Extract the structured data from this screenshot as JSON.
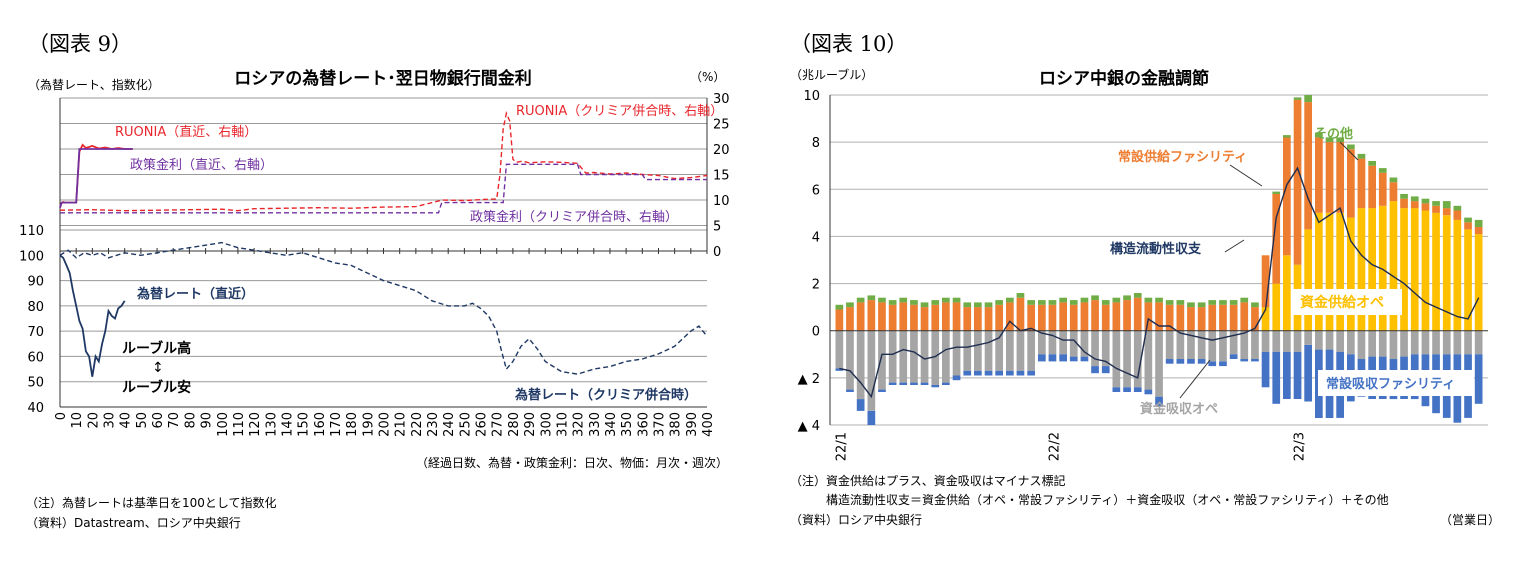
{
  "figures": [
    {
      "label": "（図表 9）",
      "title": "ロシアの為替レート･翌日物銀行間金利",
      "left_unit": "（為替レート、指数化）",
      "right_unit": "（%）",
      "xlabel": "（経過日数、為替・政策金利：日次、物価：月次・週次）",
      "annotations": {
        "ruonia_recent": "RUONIA（直近、右軸）",
        "policy_recent": "政策金利（直近、右軸）",
        "ruonia_crimea": "RUONIA（クリミア併合時、右軸）",
        "policy_crimea": "政策金利（クリミア併合時、右軸）",
        "fx_recent": "為替レート（直近）",
        "fx_crimea": "為替レート（クリミア併合時）",
        "ruble_high": "ルーブル高",
        "arrow": "↕",
        "ruble_low": "ルーブル安"
      },
      "notes": [
        "（注）為替レートは基準日を100として指数化",
        "（資料）Datastream、ロシア中央銀行"
      ]
    },
    {
      "label": "（図表 10）",
      "title": "ロシア中銀の金融調節",
      "unit": "（兆ルーブル）",
      "xlabel": "（営業日）",
      "annotations": {
        "standing_supply": "常設供給ファシリティ",
        "other": "その他",
        "structural": "構造流動性収支",
        "supply_ops": "資金供給オペ",
        "absorb_ops": "資金吸収オペ",
        "standing_absorb": "常設吸収ファシリティ"
      },
      "notes": [
        "（注）資金供給はプラス、資金吸収はマイナス標記",
        "　　　構造流動性収支＝資金供給（オペ・常設ファシリティ）＋資金吸収（オペ・常設ファシリティ）＋その他",
        "（資料）ロシア中央銀行"
      ]
    }
  ],
  "chart_data": [
    {
      "type": "line",
      "x_ticks": [
        0,
        10,
        20,
        30,
        40,
        50,
        60,
        70,
        80,
        90,
        100,
        110,
        120,
        130,
        140,
        150,
        160,
        170,
        180,
        190,
        200,
        210,
        220,
        230,
        240,
        250,
        260,
        270,
        280,
        290,
        300,
        310,
        320,
        330,
        340,
        350,
        360,
        370,
        380,
        390,
        400
      ],
      "xlim": [
        0,
        400
      ],
      "left_axis": {
        "ticks": [
          40,
          50,
          60,
          70,
          80,
          90,
          100,
          110
        ],
        "ylim": [
          40,
          110
        ]
      },
      "right_axis": {
        "ticks": [
          0,
          5,
          10,
          15,
          20,
          25,
          30
        ],
        "ylim": [
          0,
          30
        ]
      },
      "series": [
        {
          "name": "RUONIA（直近、右軸）",
          "axis": "right",
          "color": "#e8262c",
          "dash": "solid",
          "x": [
            0,
            1,
            2,
            3,
            10,
            12,
            14,
            16,
            20,
            24,
            28,
            32,
            36,
            40,
            45
          ],
          "y": [
            8.5,
            9.4,
            9.6,
            9.5,
            9.5,
            19.5,
            20.8,
            20.2,
            20.6,
            20.1,
            20.3,
            20.0,
            20.2,
            20.0,
            20.0
          ]
        },
        {
          "name": "政策金利（直近、右軸）",
          "axis": "right",
          "color": "#7030a0",
          "dash": "solid",
          "x": [
            0,
            1,
            2,
            3,
            10,
            12,
            45
          ],
          "y": [
            8.5,
            9.5,
            9.5,
            9.5,
            9.5,
            20.0,
            20.0
          ]
        },
        {
          "name": "RUONIA（クリミア併合時、右軸）",
          "axis": "right",
          "color": "#e8262c",
          "dash": "dashed",
          "x": [
            0,
            20,
            40,
            60,
            80,
            100,
            110,
            120,
            140,
            160,
            180,
            200,
            220,
            234,
            236,
            250,
            262,
            270,
            272,
            274,
            276,
            278,
            280,
            282,
            286,
            290,
            300,
            310,
            320,
            325,
            330,
            340,
            350,
            360,
            370,
            380,
            390,
            400
          ],
          "y": [
            8.0,
            8.1,
            7.9,
            8.0,
            8.1,
            8.2,
            7.9,
            8.3,
            8.4,
            8.5,
            8.4,
            8.6,
            8.7,
            9.8,
            10.0,
            9.9,
            10.1,
            10.2,
            15.0,
            24.0,
            27.0,
            25.5,
            18.0,
            17.4,
            17.6,
            17.3,
            17.5,
            17.4,
            17.2,
            15.3,
            15.4,
            15.1,
            15.3,
            15.0,
            14.8,
            14.2,
            14.4,
            14.8
          ]
        },
        {
          "name": "政策金利（クリミア併合時、右軸）",
          "axis": "right",
          "color": "#7030a0",
          "dash": "dashed",
          "x": [
            0,
            234,
            236,
            274,
            276,
            320,
            322,
            360,
            362,
            400
          ],
          "y": [
            7.5,
            7.5,
            9.5,
            9.5,
            17.0,
            17.0,
            15.0,
            15.0,
            14.0,
            14.0
          ]
        },
        {
          "name": "為替レート（直近）",
          "axis": "left",
          "color": "#1f3864",
          "dash": "solid",
          "x": [
            0,
            2,
            4,
            6,
            8,
            10,
            12,
            14,
            16,
            18,
            20,
            22,
            24,
            26,
            28,
            30,
            32,
            34,
            36,
            38,
            40
          ],
          "y": [
            100,
            99,
            96,
            93,
            86,
            80,
            74,
            71,
            62,
            60,
            52,
            60,
            58,
            65,
            70,
            78,
            76,
            75,
            79,
            80,
            82
          ]
        },
        {
          "name": "為替レート（クリミア併合時）",
          "axis": "left",
          "color": "#1f3864",
          "dash": "dashed",
          "x": [
            0,
            5,
            10,
            15,
            20,
            25,
            30,
            35,
            40,
            50,
            60,
            70,
            80,
            90,
            100,
            110,
            120,
            130,
            140,
            150,
            160,
            170,
            180,
            190,
            200,
            210,
            220,
            230,
            240,
            250,
            255,
            260,
            265,
            270,
            273,
            276,
            280,
            285,
            290,
            295,
            300,
            310,
            320,
            330,
            340,
            350,
            360,
            370,
            380,
            390,
            395,
            400
          ],
          "y": [
            100,
            102,
            99,
            101,
            100,
            101,
            99,
            100,
            101,
            100,
            101,
            102,
            103,
            104,
            105,
            103,
            102,
            101,
            100,
            101,
            99,
            97,
            96,
            93,
            90,
            88,
            86,
            82,
            80,
            80,
            81,
            79,
            76,
            70,
            62,
            55,
            58,
            64,
            67,
            63,
            58,
            54,
            53,
            55,
            56,
            58,
            59,
            61,
            64,
            70,
            72,
            68
          ]
        }
      ]
    },
    {
      "type": "bar",
      "stacked": true,
      "x_tick_labels": [
        "22/1",
        "22/2",
        "22/3"
      ],
      "ylim": [
        -4,
        10
      ],
      "y_ticks": [
        -4,
        -2,
        0,
        2,
        4,
        6,
        8,
        10
      ],
      "y_tick_labels": [
        "▲ 4",
        "▲ 2",
        "0",
        "2",
        "4",
        "6",
        "8",
        "10"
      ],
      "series": [
        {
          "name": "資金供給オペ",
          "color": "#ffc000",
          "values": [
            0,
            0,
            0,
            0,
            0,
            0,
            0,
            0,
            0,
            0,
            0,
            0,
            0,
            0,
            0,
            0,
            0,
            0,
            0,
            0,
            0,
            0,
            0,
            0,
            0,
            0,
            0,
            0,
            0,
            0,
            0,
            0,
            0,
            0,
            0,
            0,
            0,
            0,
            0,
            0,
            1.0,
            2.0,
            3.2,
            2.8,
            4.3,
            5.0,
            5.0,
            5.0,
            4.8,
            5.2,
            5.2,
            5.3,
            5.5,
            5.2,
            5.2,
            5.1,
            5.0,
            4.9,
            4.7,
            4.3,
            4.1
          ]
        },
        {
          "name": "常設供給ファシリティ",
          "color": "#ed7d31",
          "values": [
            0.9,
            1.0,
            1.2,
            1.3,
            1.2,
            1.1,
            1.2,
            1.1,
            1.0,
            1.1,
            1.2,
            1.2,
            1.0,
            1.0,
            1.0,
            1.1,
            1.2,
            1.4,
            1.1,
            1.1,
            1.1,
            1.2,
            1.1,
            1.2,
            1.3,
            1.1,
            1.2,
            1.3,
            1.4,
            1.2,
            1.2,
            1.1,
            1.1,
            1.0,
            1.0,
            1.1,
            1.1,
            1.1,
            1.2,
            1.0,
            2.2,
            3.8,
            5.0,
            7.0,
            5.4,
            3.2,
            3.0,
            3.0,
            2.9,
            2.1,
            1.8,
            1.4,
            0.8,
            0.4,
            0.3,
            0.3,
            0.3,
            0.3,
            0.4,
            0.3,
            0.3
          ]
        },
        {
          "name": "その他",
          "color": "#70ad47",
          "values": [
            0.2,
            0.2,
            0.2,
            0.2,
            0.2,
            0.2,
            0.2,
            0.2,
            0.2,
            0.2,
            0.2,
            0.2,
            0.2,
            0.2,
            0.2,
            0.2,
            0.2,
            0.2,
            0.2,
            0.2,
            0.2,
            0.2,
            0.2,
            0.2,
            0.2,
            0.2,
            0.2,
            0.2,
            0.2,
            0.2,
            0.2,
            0.2,
            0.2,
            0.2,
            0.2,
            0.2,
            0.2,
            0.2,
            0.2,
            0.2,
            0.0,
            0.1,
            0.1,
            0.1,
            0.3,
            0.2,
            0.2,
            0.2,
            0.2,
            0.2,
            0.2,
            0.2,
            0.2,
            0.2,
            0.2,
            0.2,
            0.2,
            0.3,
            0.2,
            0.2,
            0.3
          ]
        },
        {
          "name": "資金吸収オペ",
          "color": "#a5a5a5",
          "values": [
            -1.6,
            -2.5,
            -2.9,
            -3.4,
            -2.5,
            -2.2,
            -2.2,
            -2.2,
            -2.2,
            -2.3,
            -2.2,
            -1.9,
            -1.7,
            -1.7,
            -1.7,
            -1.7,
            -1.7,
            -1.7,
            -1.7,
            -1.0,
            -1.0,
            -1.0,
            -1.1,
            -1.1,
            -1.5,
            -1.5,
            -2.4,
            -2.4,
            -2.4,
            -2.5,
            -2.8,
            -1.2,
            -1.2,
            -1.2,
            -1.2,
            -1.3,
            -1.3,
            -1.0,
            -1.2,
            -1.2,
            -0.9,
            -0.9,
            -0.9,
            -0.9,
            -0.6,
            -0.8,
            -0.8,
            -0.9,
            -1.0,
            -1.2,
            -1.1,
            -1.1,
            -1.2,
            -1.1,
            -1.0,
            -1.0,
            -1.0,
            -1.0,
            -1.0,
            -1.0,
            -1.0
          ]
        },
        {
          "name": "常設吸収ファシリティ",
          "color": "#4472c4",
          "values": [
            -0.1,
            -0.1,
            -0.5,
            -0.6,
            -0.1,
            -0.1,
            -0.1,
            -0.1,
            -0.1,
            -0.1,
            -0.1,
            -0.2,
            -0.2,
            -0.2,
            -0.2,
            -0.2,
            -0.2,
            -0.2,
            -0.2,
            -0.3,
            -0.3,
            -0.3,
            -0.2,
            -0.2,
            -0.3,
            -0.3,
            -0.2,
            -0.2,
            -0.2,
            -0.2,
            -0.4,
            -0.2,
            -0.2,
            -0.2,
            -0.2,
            -0.2,
            -0.2,
            -0.2,
            -0.1,
            -0.1,
            -1.5,
            -2.2,
            -2.0,
            -2.0,
            -2.4,
            -2.9,
            -2.9,
            -2.8,
            -2.0,
            -1.6,
            -1.8,
            -1.8,
            -1.7,
            -1.8,
            -1.9,
            -2.2,
            -2.5,
            -2.7,
            -2.9,
            -2.7,
            -2.1
          ]
        },
        {
          "name": "構造流動性収支",
          "color": "#1f2d50",
          "kind": "line",
          "values": [
            -1.6,
            -1.7,
            -2.2,
            -2.8,
            -1.0,
            -1.0,
            -0.8,
            -0.9,
            -1.2,
            -1.1,
            -0.8,
            -0.7,
            -0.7,
            -0.6,
            -0.5,
            -0.3,
            0.4,
            0.0,
            0.1,
            -0.1,
            -0.2,
            -0.4,
            -0.4,
            -0.9,
            -1.2,
            -1.3,
            -1.6,
            -1.8,
            -2.0,
            0.5,
            0.2,
            0.2,
            -0.1,
            -0.2,
            -0.3,
            -0.4,
            -0.3,
            -0.2,
            -0.1,
            0.1,
            0.9,
            4.8,
            6.2,
            6.9,
            5.6,
            4.6,
            4.9,
            5.2,
            3.8,
            3.2,
            2.8,
            2.6,
            2.3,
            2.0,
            1.6,
            1.2,
            1.0,
            0.8,
            0.6,
            0.5,
            1.4
          ]
        }
      ]
    }
  ]
}
